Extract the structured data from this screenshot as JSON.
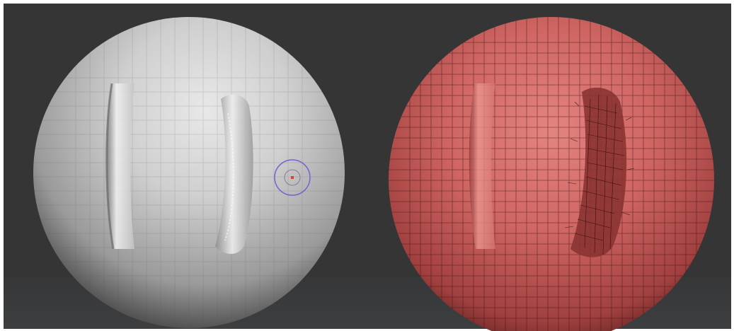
{
  "viewport": {
    "background_color": "#353535",
    "floor_color": "#3a3b3d"
  },
  "left_model": {
    "material": "matcap-gray",
    "base_color": "#b8b8b8",
    "highlight_color": "#eaeaea",
    "shadow_color": "#2a2a2a",
    "wireframe": false
  },
  "right_model": {
    "material": "red-wax",
    "base_color": "#c85a58",
    "highlight_color": "#f08a84",
    "shadow_color": "#2a0f0f",
    "wire_color": "#3a1010",
    "wireframe": true
  },
  "brush_cursor": {
    "icon": "brush-cursor-icon",
    "ring_color": "#7b5fd0",
    "center_color": "#d8452a"
  }
}
